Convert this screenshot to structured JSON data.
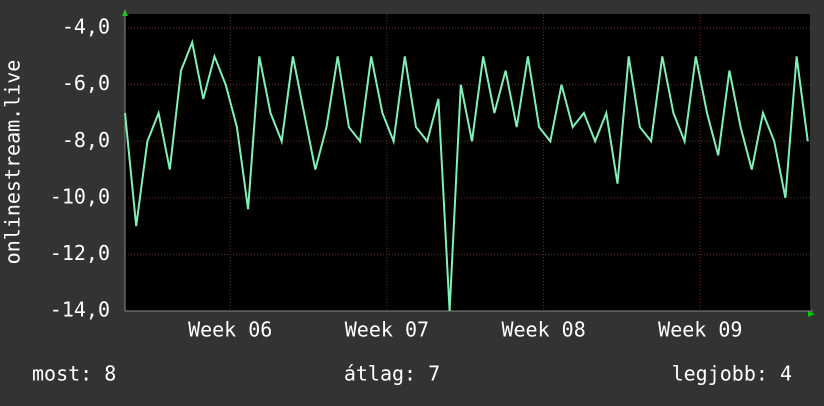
{
  "chart_data": {
    "type": "line",
    "ylabel": "onlinestream.live",
    "x": [
      0,
      0.5,
      1,
      1.5,
      2,
      2.5,
      3,
      3.5,
      4,
      4.5,
      5,
      5.5,
      6,
      6.5,
      7,
      7.5,
      8,
      8.5,
      9,
      9.5,
      10,
      10.5,
      11,
      11.5,
      12,
      12.5,
      13,
      13.5,
      14,
      14.5,
      15,
      15.5,
      16,
      16.5,
      17,
      17.5,
      18,
      18.5,
      19,
      19.5,
      20,
      20.5,
      21,
      21.5,
      22,
      22.5,
      23,
      23.5,
      24,
      24.5,
      25,
      25.5,
      26,
      26.5,
      27,
      27.5,
      28,
      28.5,
      29,
      29.5,
      30,
      30.5
    ],
    "values": [
      -7,
      -11,
      -8,
      -7,
      -9,
      -5.5,
      -4.5,
      -6.5,
      -5,
      -6,
      -7.5,
      -10.4,
      -5,
      -7,
      -8,
      -5,
      -7,
      -9,
      -7.5,
      -5,
      -7.5,
      -8,
      -5,
      -7,
      -8,
      -5,
      -7.5,
      -8,
      -6.5,
      -14,
      -6,
      -8,
      -5,
      -7,
      -5.5,
      -7.5,
      -5,
      -7.5,
      -8,
      -6,
      -7.5,
      -7,
      -8,
      -7,
      -9.5,
      -5,
      -7.5,
      -8,
      -5,
      -7,
      -8,
      -5,
      -7,
      -8.5,
      -5.5,
      -7.5,
      -9,
      -7,
      -8,
      -10,
      -5,
      -8
    ],
    "color": "#7ff0b8",
    "xlim": [
      0,
      30.6
    ],
    "xticks": [
      {
        "value": 4.7,
        "label": "Week 06"
      },
      {
        "value": 11.7,
        "label": "Week 07"
      },
      {
        "value": 18.7,
        "label": "Week 08"
      },
      {
        "value": 25.7,
        "label": "Week 09"
      }
    ],
    "ylim": [
      -14,
      -3.5
    ],
    "yticks": [
      {
        "value": -14,
        "label": "-14,0"
      },
      {
        "value": -12,
        "label": "-12,0"
      },
      {
        "value": -10,
        "label": "-10,0"
      },
      {
        "value": -8,
        "label": "-8,0"
      },
      {
        "value": -6,
        "label": "-6,0"
      },
      {
        "value": -4,
        "label": "-4,0"
      }
    ],
    "grid": true,
    "stats": [
      "most: 8",
      "átlag: 7",
      "legjobb: 4"
    ]
  }
}
